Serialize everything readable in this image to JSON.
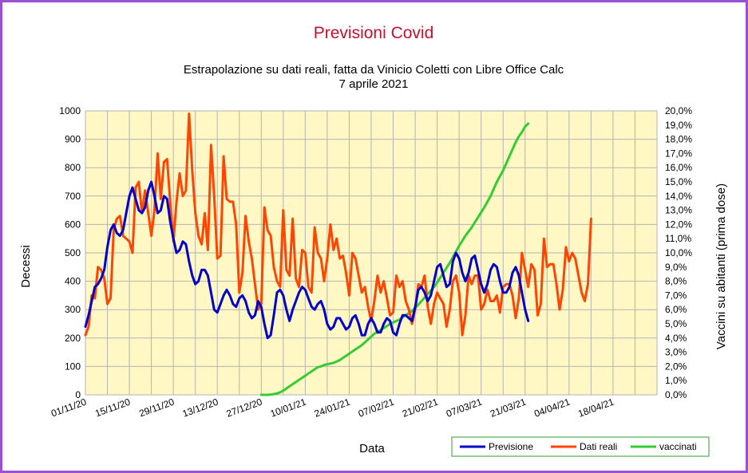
{
  "chart_data": {
    "type": "line",
    "title": "Previsioni Covid",
    "subtitle_line1": "Estrapolazione su dati reali, fatta da Vinicio Coletti con Libre Office Calc",
    "subtitle_line2": "7 aprile 2021",
    "xlabel": "Data",
    "ylabel": "Decessi",
    "y2label": "Vaccini su abitanti (prima dose)",
    "ylim": [
      0,
      1000
    ],
    "y2lim": [
      0,
      20
    ],
    "grid": true,
    "plot_background": "#fff8c4",
    "legend_position": "bottom-right",
    "x_ticks": [
      "01/11/20",
      "15/11/20",
      "29/11/20",
      "13/12/20",
      "27/12/20",
      "10/01/21",
      "24/01/21",
      "07/02/21",
      "21/02/21",
      "07/03/21",
      "21/03/21",
      "04/04/21",
      "18/04/21"
    ],
    "y_ticks": [
      "0",
      "100",
      "200",
      "300",
      "400",
      "500",
      "600",
      "700",
      "800",
      "900",
      "1000"
    ],
    "y2_ticks": [
      "0,0%",
      "1,0%",
      "2,0%",
      "3,0%",
      "4,0%",
      "5,0%",
      "6,0%",
      "7,0%",
      "8,0%",
      "9,0%",
      "10,0%",
      "11,0%",
      "12,0%",
      "13,0%",
      "14,0%",
      "15,0%",
      "16,0%",
      "17,0%",
      "18,0%",
      "19,0%",
      "20,0%"
    ],
    "series": [
      {
        "name": "Previsione",
        "color": "#0000cc",
        "axis": "left",
        "x_start_day": 0,
        "values": [
          240,
          280,
          330,
          380,
          390,
          410,
          440,
          520,
          580,
          600,
          570,
          560,
          580,
          640,
          700,
          730,
          690,
          650,
          640,
          660,
          720,
          750,
          700,
          640,
          650,
          700,
          690,
          610,
          550,
          500,
          510,
          540,
          530,
          470,
          420,
          390,
          400,
          440,
          440,
          420,
          360,
          300,
          290,
          320,
          350,
          370,
          350,
          320,
          310,
          340,
          350,
          330,
          290,
          270,
          280,
          330,
          310,
          250,
          200,
          210,
          280,
          360,
          370,
          350,
          300,
          260,
          300,
          330,
          360,
          380,
          370,
          340,
          310,
          300,
          320,
          330,
          300,
          250,
          230,
          240,
          270,
          270,
          250,
          230,
          240,
          270,
          280,
          250,
          210,
          210,
          250,
          270,
          250,
          220,
          220,
          250,
          270,
          260,
          220,
          210,
          250,
          280,
          280,
          270,
          260,
          310,
          370,
          380,
          360,
          330,
          350,
          400,
          450,
          460,
          420,
          380,
          390,
          470,
          500,
          480,
          430,
          400,
          430,
          480,
          490,
          440,
          390,
          360,
          390,
          440,
          460,
          450,
          400,
          360,
          360,
          380,
          430,
          450,
          420,
          360,
          300,
          260
        ]
      },
      {
        "name": "Dati reali",
        "color": "#ff4500",
        "axis": "left",
        "x_start_day": 0,
        "values": [
          210,
          240,
          350,
          340,
          450,
          440,
          410,
          320,
          340,
          580,
          620,
          630,
          560,
          550,
          540,
          500,
          730,
          750,
          640,
          720,
          640,
          560,
          650,
          850,
          690,
          820,
          830,
          680,
          540,
          680,
          780,
          700,
          720,
          990,
          790,
          640,
          560,
          530,
          640,
          510,
          880,
          700,
          480,
          490,
          840,
          690,
          680,
          680,
          600,
          360,
          430,
          630,
          540,
          480,
          390,
          300,
          320,
          660,
          580,
          560,
          450,
          400,
          380,
          650,
          440,
          420,
          620,
          410,
          380,
          510,
          500,
          380,
          360,
          590,
          500,
          480,
          400,
          480,
          600,
          510,
          550,
          480,
          490,
          430,
          350,
          500,
          480,
          420,
          360,
          380,
          310,
          260,
          330,
          420,
          360,
          400,
          340,
          280,
          290,
          420,
          380,
          400,
          330,
          300,
          250,
          300,
          390,
          380,
          420,
          310,
          250,
          320,
          360,
          340,
          320,
          240,
          300,
          400,
          420,
          360,
          210,
          280,
          420,
          390,
          420,
          420,
          300,
          320,
          370,
          330,
          330,
          350,
          290,
          380,
          390,
          390,
          350,
          270,
          340,
          500,
          440,
          380,
          460,
          440,
          280,
          320,
          550,
          450,
          460,
          460,
          390,
          300,
          370,
          520,
          470,
          500,
          480,
          420,
          360,
          330,
          390,
          620
        ]
      },
      {
        "name": "vaccinati",
        "color": "#33cc33",
        "axis": "right",
        "x_start_day": 56,
        "values": [
          0,
          0,
          0,
          0.02,
          0.05,
          0.1,
          0.18,
          0.3,
          0.45,
          0.6,
          0.75,
          0.9,
          1.05,
          1.2,
          1.35,
          1.5,
          1.65,
          1.8,
          1.95,
          2.0,
          2.1,
          2.15,
          2.2,
          2.25,
          2.35,
          2.45,
          2.6,
          2.75,
          2.9,
          3.05,
          3.2,
          3.35,
          3.5,
          3.7,
          3.9,
          4.1,
          4.3,
          4.45,
          4.55,
          4.7,
          4.85,
          5.0,
          5.1,
          5.2,
          5.3,
          5.45,
          5.6,
          5.75,
          5.9,
          6.1,
          6.35,
          6.6,
          6.85,
          7.1,
          7.35,
          7.6,
          7.9,
          8.25,
          8.6,
          8.95,
          9.3,
          9.7,
          10.1,
          10.5,
          10.85,
          11.2,
          11.5,
          11.8,
          12.15,
          12.5,
          12.85,
          13.2,
          13.6,
          14.0,
          14.5,
          15.0,
          15.4,
          15.8,
          16.3,
          16.8,
          17.3,
          17.8,
          18.2,
          18.5,
          18.9,
          19.1
        ]
      }
    ]
  }
}
